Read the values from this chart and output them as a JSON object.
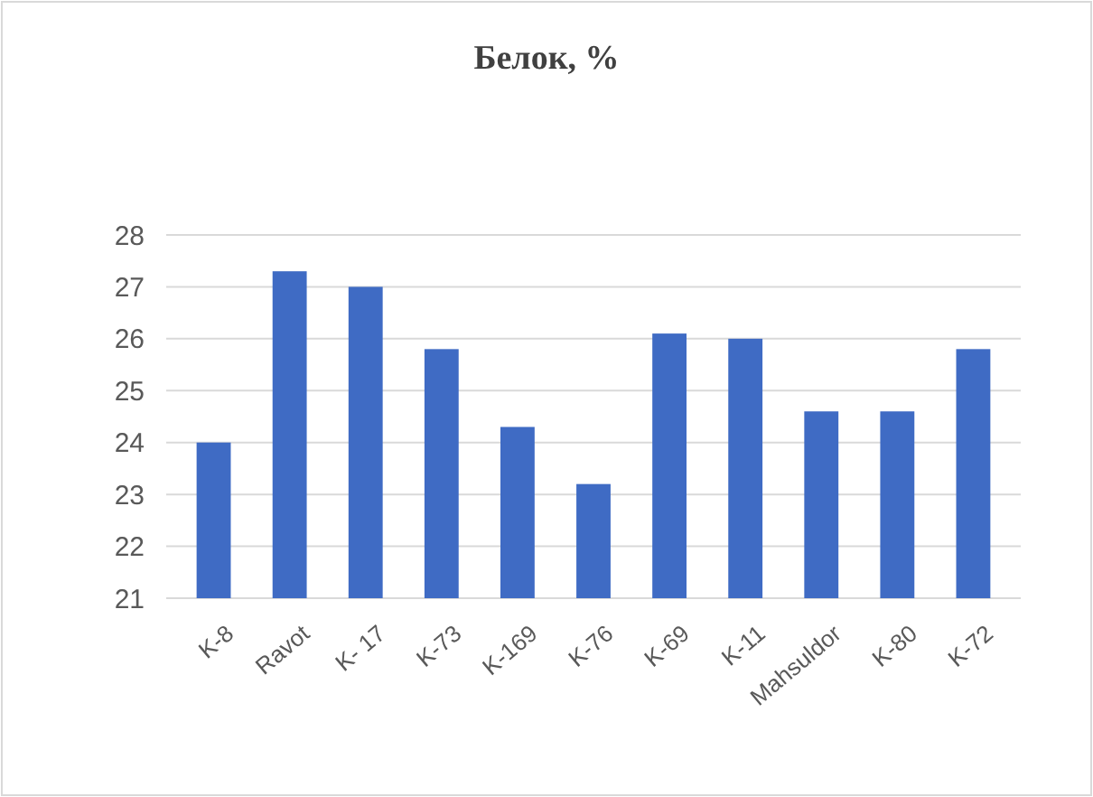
{
  "chart_data": {
    "type": "bar",
    "title": "Белок, %",
    "categories": [
      "K-8",
      "Ravot",
      "K- 17",
      "K-73",
      "K-169",
      "K-76",
      "K-69",
      "K-11",
      "Mahsuldor",
      "K-80",
      "K-72"
    ],
    "values": [
      24.0,
      27.3,
      27.0,
      25.8,
      24.3,
      23.2,
      26.1,
      26.0,
      24.6,
      24.6,
      25.8
    ],
    "color": "#3f6bc4",
    "ylim": [
      21,
      28
    ],
    "yticks": [
      21,
      22,
      23,
      24,
      25,
      26,
      27,
      28
    ],
    "grid": "y"
  }
}
